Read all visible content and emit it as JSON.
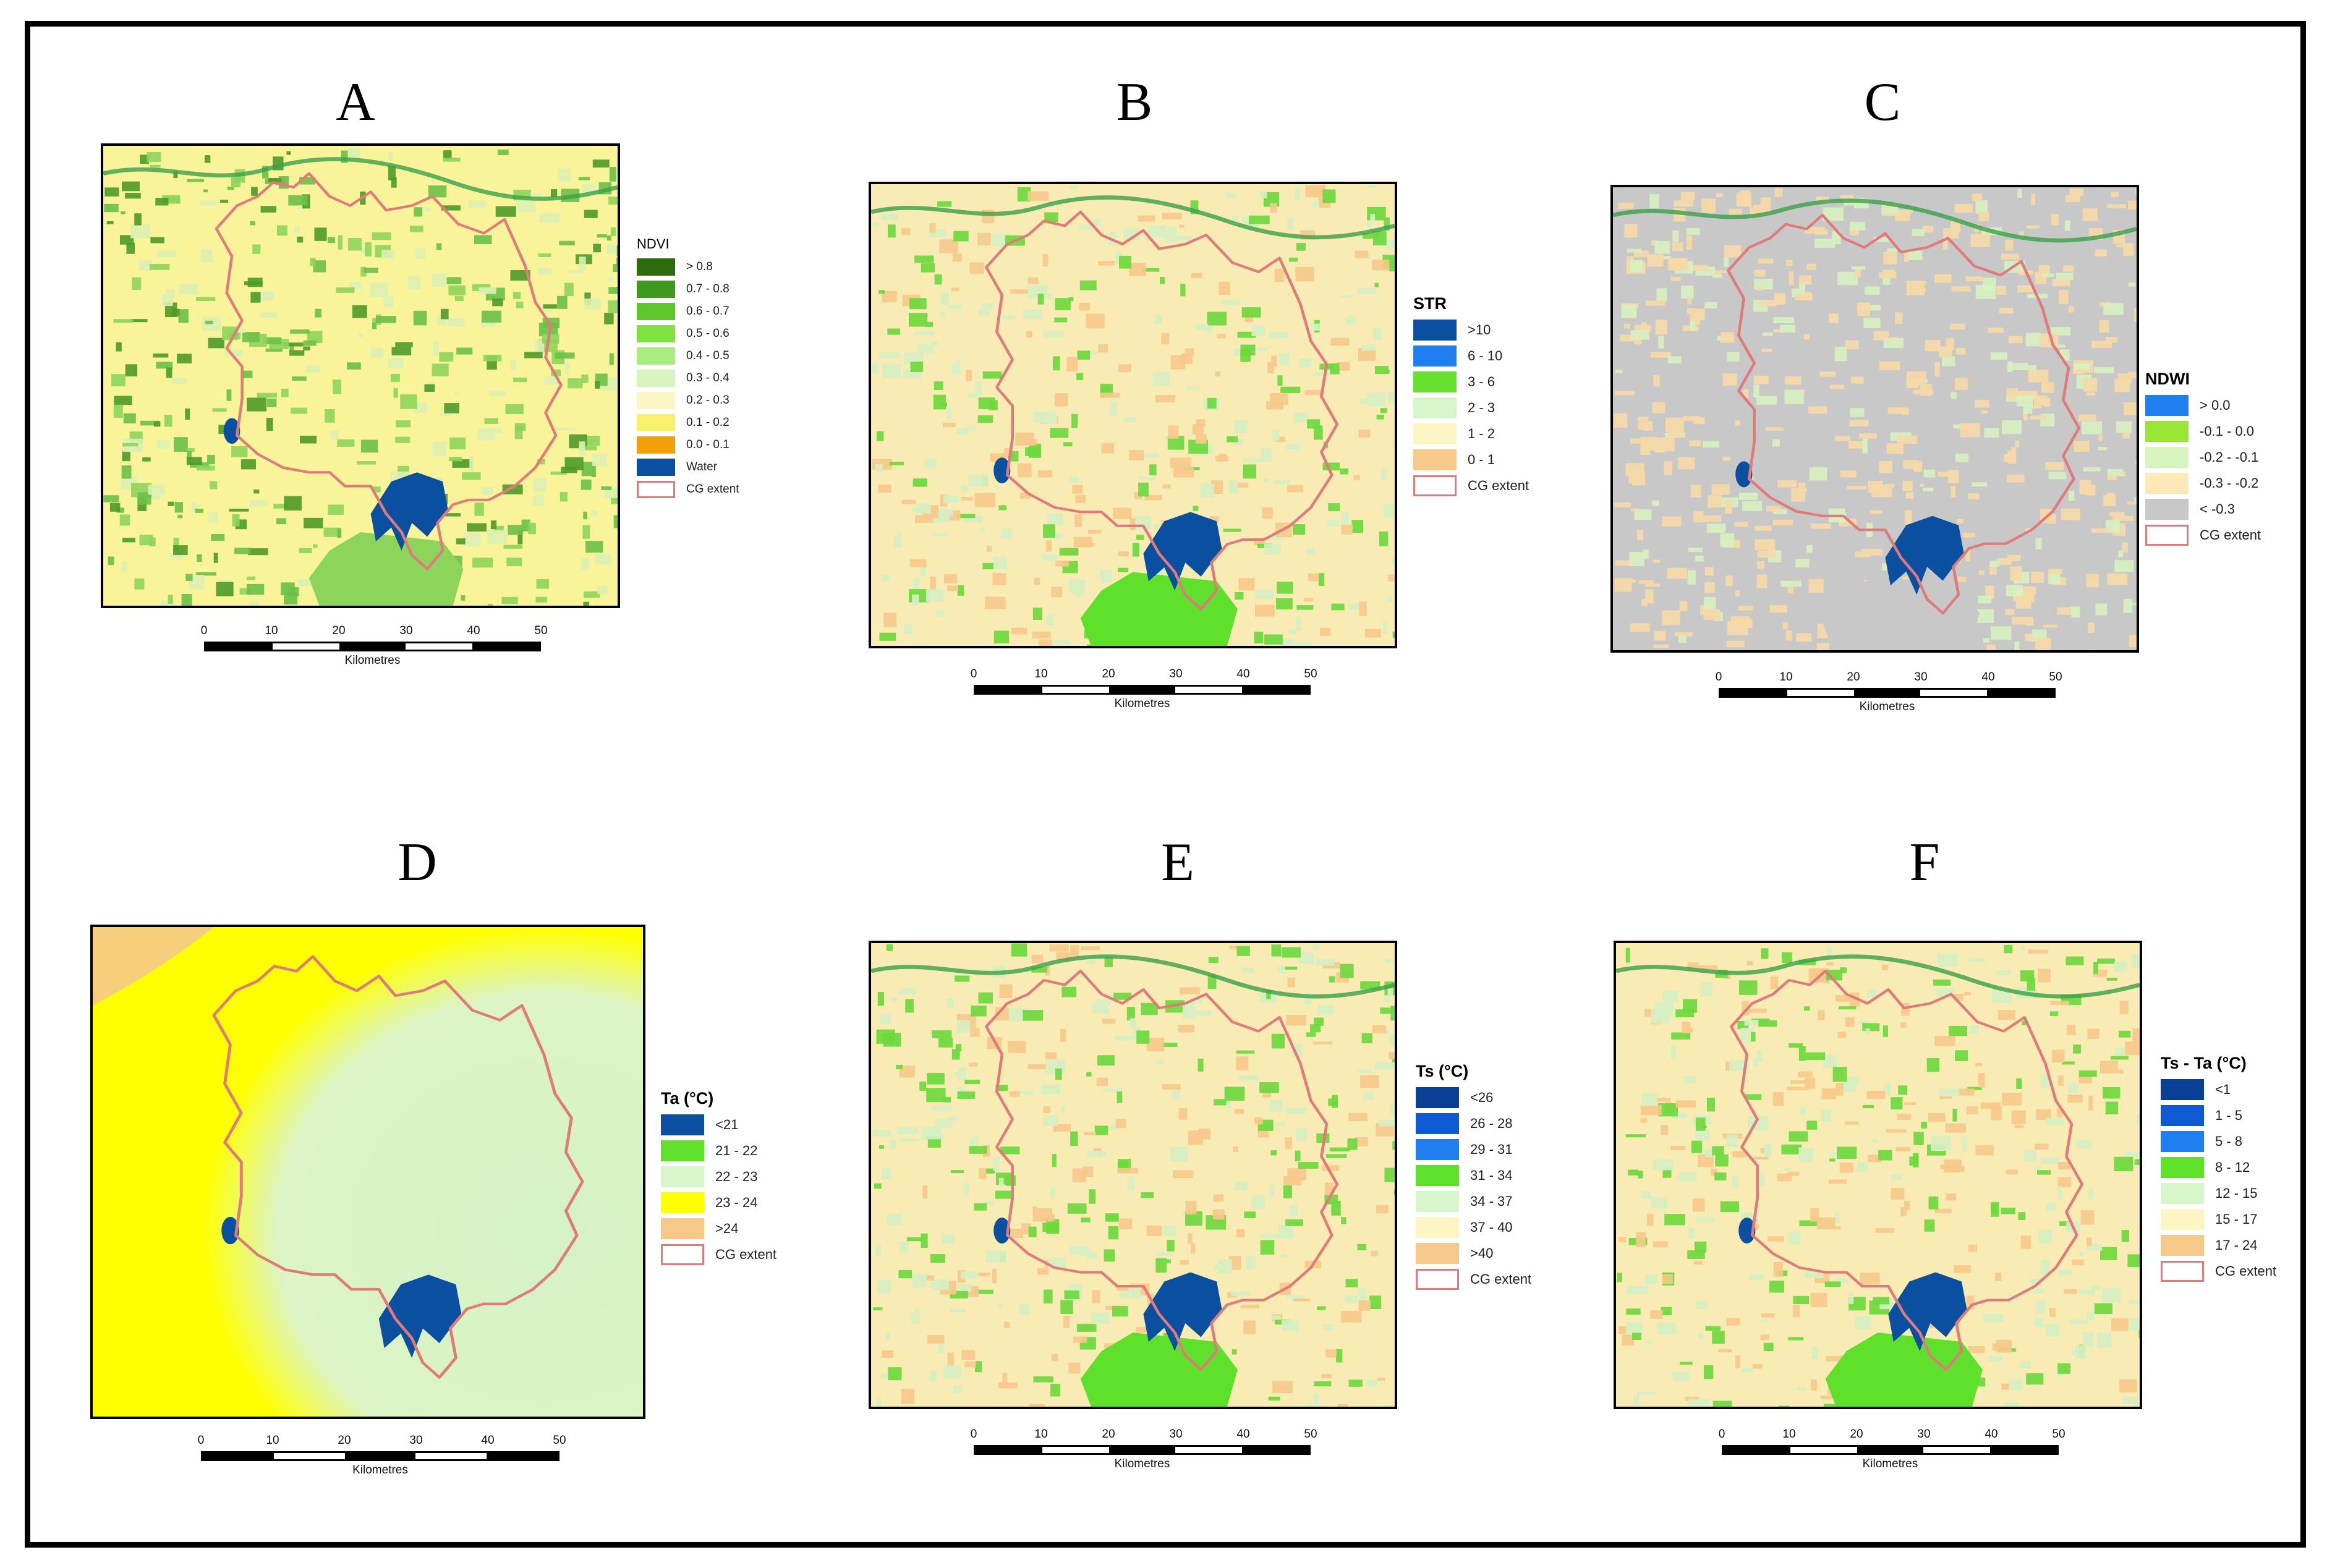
{
  "panels": [
    {
      "letter": "A",
      "legend_title": "NDVI",
      "title_small": true,
      "base_color": "#f9f49a",
      "patch_colors": [
        "#6cc04a",
        "#4e9a2a",
        "#dcefb4",
        "#8dd45a"
      ],
      "classes": [
        {
          "label": "> 0.8",
          "color": "#2e6b0e"
        },
        {
          "label": "0.7 - 0.8",
          "color": "#3f9a1e"
        },
        {
          "label": "0.6 - 0.7",
          "color": "#5fc62c"
        },
        {
          "label": "0.5 - 0.6",
          "color": "#7fe241"
        },
        {
          "label": "0.4 - 0.5",
          "color": "#a8ec82"
        },
        {
          "label": "0.3 - 0.4",
          "color": "#d8f5c0"
        },
        {
          "label": "0.2 - 0.3",
          "color": "#fbf6c4"
        },
        {
          "label": "0.1 - 0.2",
          "color": "#f9f06e"
        },
        {
          "label": "0.0 - 0.1",
          "color": "#f29f0c"
        },
        {
          "label": "Water",
          "color": "#0a4fa0"
        },
        {
          "label": "CG extent",
          "color": "outline"
        }
      ]
    },
    {
      "letter": "B",
      "legend_title": "STR",
      "title_small": false,
      "base_color": "#f8ecb4",
      "patch_colors": [
        "#f6c98a",
        "#d6f0c2",
        "#6ad83c"
      ],
      "classes": [
        {
          "label": ">10",
          "color": "#0a4fa0"
        },
        {
          "label": "6 - 10",
          "color": "#1f7ff0"
        },
        {
          "label": "3 - 6",
          "color": "#66e22e"
        },
        {
          "label": "2 - 3",
          "color": "#d7f6cc"
        },
        {
          "label": "1 - 2",
          "color": "#fdf6c4"
        },
        {
          "label": "0 - 1",
          "color": "#f7c98a"
        },
        {
          "label": "CG extent",
          "color": "outline"
        }
      ]
    },
    {
      "letter": "C",
      "legend_title": "NDWI",
      "title_small": false,
      "base_color": "#c8c8c8",
      "patch_colors": [
        "#f6d9a6",
        "#f6d9a6",
        "#d7f1c0"
      ],
      "classes": [
        {
          "label": "> 0.0",
          "color": "#1f7ff0"
        },
        {
          "label": "-0.1 - 0.0",
          "color": "#9ae636"
        },
        {
          "label": "-0.2 - -0.1",
          "color": "#d8f5c0"
        },
        {
          "label": "-0.3 - -0.2",
          "color": "#fde8b8"
        },
        {
          "label": "< -0.3",
          "color": "#c8c8c8"
        },
        {
          "label": "CG extent",
          "color": "outline"
        }
      ]
    },
    {
      "letter": "D",
      "legend_title": "Ta (°C)",
      "title_small": false,
      "base_color": "#ffff00",
      "patch_colors": [
        "#dcf5cc"
      ],
      "classes": [
        {
          "label": "<21",
          "color": "#0a4fa0"
        },
        {
          "label": "21 - 22",
          "color": "#5fe02a"
        },
        {
          "label": "22 - 23",
          "color": "#d8f5cc"
        },
        {
          "label": "23 - 24",
          "color": "#ffff00"
        },
        {
          "label": ">24",
          "color": "#f6c98a"
        },
        {
          "label": "CG extent",
          "color": "outline"
        }
      ]
    },
    {
      "letter": "E",
      "legend_title": "Ts (°C)",
      "title_small": false,
      "base_color": "#f8ecb4",
      "patch_colors": [
        "#f6c98a",
        "#d6f0c2",
        "#6ad83c"
      ],
      "classes": [
        {
          "label": "<26",
          "color": "#0a3f96"
        },
        {
          "label": "26 - 28",
          "color": "#0e5ad2"
        },
        {
          "label": "29 - 31",
          "color": "#1f7ff0"
        },
        {
          "label": "31 - 34",
          "color": "#5fe02a"
        },
        {
          "label": "34 - 37",
          "color": "#d7f6cc"
        },
        {
          "label": "37 - 40",
          "color": "#fdf6c4"
        },
        {
          "label": ">40",
          "color": "#f6c98a"
        },
        {
          "label": "CG extent",
          "color": "outline"
        }
      ]
    },
    {
      "letter": "F",
      "legend_title": "Ts - Ta (°C)",
      "title_small": false,
      "base_color": "#f8ecb4",
      "patch_colors": [
        "#f6c98a",
        "#d6f0c2",
        "#6ad83c"
      ],
      "classes": [
        {
          "label": "<1",
          "color": "#0a3f96"
        },
        {
          "label": "1 - 5",
          "color": "#0e5ad2"
        },
        {
          "label": "5 - 8",
          "color": "#1f7ff0"
        },
        {
          "label": "8 - 12",
          "color": "#5fe02a"
        },
        {
          "label": "12 - 15",
          "color": "#d7f6cc"
        },
        {
          "label": "15 - 17",
          "color": "#fdf6c4"
        },
        {
          "label": "17 - 24",
          "color": "#f6c98a"
        },
        {
          "label": "CG extent",
          "color": "outline"
        }
      ]
    }
  ],
  "scale": {
    "ticks": [
      "0",
      "10",
      "20",
      "30",
      "40",
      "50"
    ],
    "unit": "Kilometres"
  },
  "colors": {
    "boundary": "#e07b7b",
    "reservoir": "#0a4fa0",
    "frame": "#000000"
  }
}
